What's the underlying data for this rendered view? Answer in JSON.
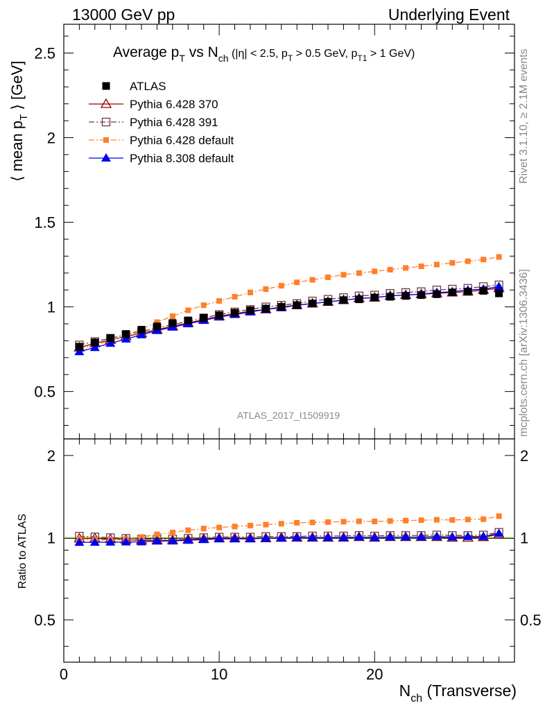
{
  "header": {
    "left": "13000 GeV pp",
    "right": "Underlying Event"
  },
  "side_text": {
    "rivet": "Rivet 3.1.10, ≥ 2.1M events",
    "mcplots": "mcplots.cern.ch [arXiv:1306.3436]"
  },
  "analysis_id": "ATLAS_2017_I1509919",
  "colors": {
    "atlas": "#000000",
    "p370": "#8b0000",
    "p391": "#6b3a4a",
    "p6def": "#ff7f2a",
    "p8def": "#0000ee",
    "ref_line": "#9acd32"
  },
  "chart_data": {
    "type": "line",
    "title": "Average pT vs Nch (|η| < 2.5, pT > 0.5 GeV, pT1 > 1 GeV)",
    "xlabel": "Nch (Transverse)",
    "ylabel": "⟨ mean pT ⟩ [GeV]",
    "ratio_ylabel": "Ratio to ATLAS",
    "xlim": [
      0,
      29
    ],
    "ylim": [
      0.22,
      2.67
    ],
    "ratio_ylim": [
      0.35,
      2.3
    ],
    "x_ticks": [
      0,
      10,
      20
    ],
    "y_ticks": [
      "0.5",
      "1",
      "1.5",
      "2",
      "2.5"
    ],
    "ratio_y_ticks": [
      "0.5",
      "1",
      "2"
    ],
    "legend_position": "top-left",
    "x": [
      1,
      2,
      3,
      4,
      5,
      6,
      7,
      8,
      9,
      10,
      11,
      12,
      13,
      14,
      15,
      16,
      17,
      18,
      19,
      20,
      21,
      22,
      23,
      24,
      25,
      26,
      27,
      28
    ],
    "series": [
      {
        "name": "ATLAS",
        "key": "atlas",
        "marker": "filled-square",
        "values": [
          0.765,
          0.79,
          0.815,
          0.84,
          0.865,
          0.885,
          0.905,
          0.92,
          0.935,
          0.95,
          0.965,
          0.98,
          0.99,
          1.0,
          1.01,
          1.02,
          1.03,
          1.04,
          1.045,
          1.055,
          1.06,
          1.065,
          1.07,
          1.075,
          1.085,
          1.09,
          1.095,
          1.08
        ]
      },
      {
        "name": "Pythia 6.428 370",
        "key": "p370",
        "marker": "open-triangle",
        "values": [
          0.76,
          0.785,
          0.805,
          0.825,
          0.845,
          0.865,
          0.885,
          0.905,
          0.925,
          0.945,
          0.96,
          0.975,
          0.985,
          1.0,
          1.01,
          1.02,
          1.03,
          1.04,
          1.05,
          1.055,
          1.065,
          1.07,
          1.075,
          1.08,
          1.085,
          1.09,
          1.1,
          1.11
        ]
      },
      {
        "name": "Pythia 6.428 391",
        "key": "p391",
        "marker": "open-square",
        "values": [
          0.775,
          0.795,
          0.815,
          0.835,
          0.855,
          0.875,
          0.895,
          0.915,
          0.935,
          0.955,
          0.97,
          0.985,
          1.0,
          1.01,
          1.02,
          1.035,
          1.045,
          1.055,
          1.065,
          1.07,
          1.08,
          1.085,
          1.09,
          1.1,
          1.105,
          1.11,
          1.12,
          1.13
        ]
      },
      {
        "name": "Pythia 6.428 default",
        "key": "p6def",
        "marker": "filled-small-square",
        "values": [
          0.755,
          0.775,
          0.8,
          0.83,
          0.87,
          0.91,
          0.945,
          0.98,
          1.01,
          1.035,
          1.06,
          1.085,
          1.105,
          1.125,
          1.145,
          1.16,
          1.175,
          1.19,
          1.2,
          1.21,
          1.22,
          1.23,
          1.24,
          1.25,
          1.26,
          1.27,
          1.28,
          1.295
        ]
      },
      {
        "name": "Pythia 8.308 default",
        "key": "p8def",
        "marker": "filled-triangle",
        "values": [
          0.735,
          0.76,
          0.785,
          0.81,
          0.835,
          0.86,
          0.88,
          0.9,
          0.92,
          0.94,
          0.955,
          0.97,
          0.985,
          0.995,
          1.01,
          1.02,
          1.03,
          1.04,
          1.05,
          1.055,
          1.065,
          1.07,
          1.075,
          1.085,
          1.09,
          1.1,
          1.105,
          1.12
        ]
      }
    ]
  }
}
